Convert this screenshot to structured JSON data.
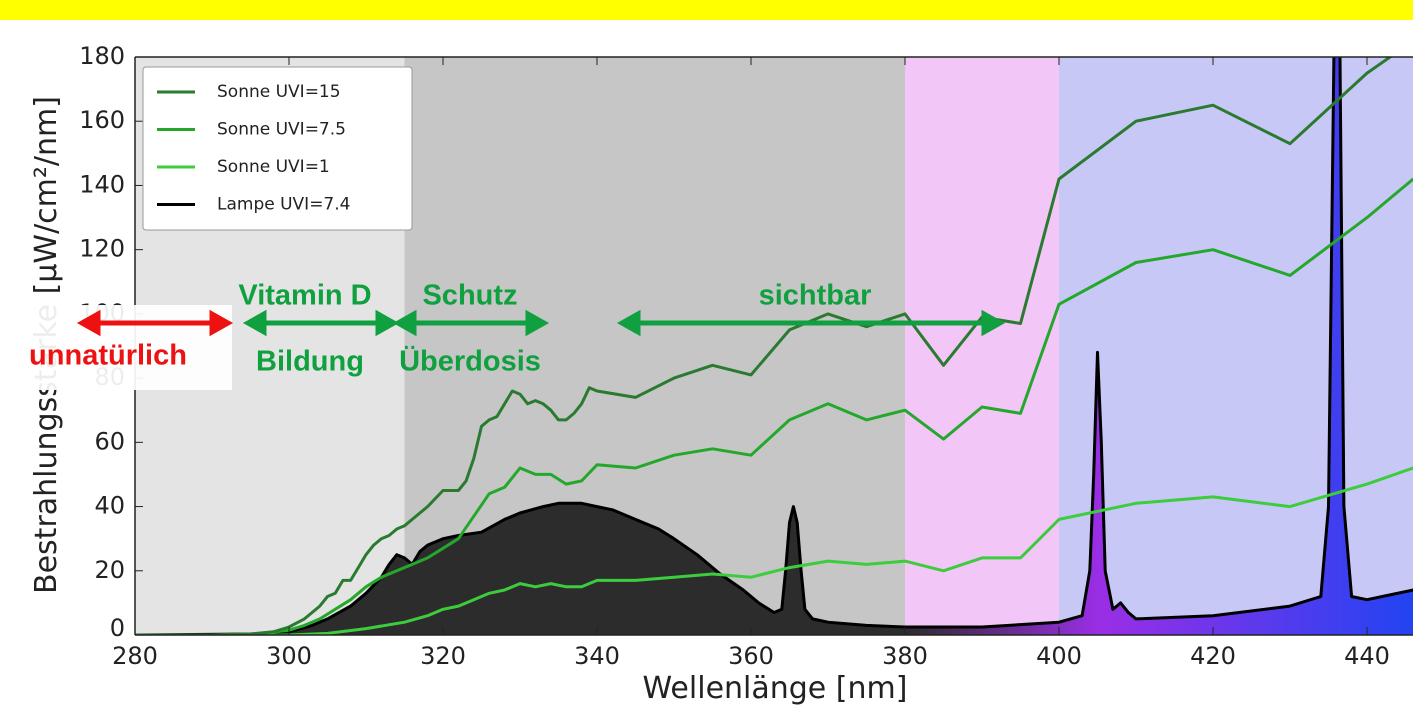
{
  "chart_data": {
    "type": "line",
    "xlabel": "Wellenlänge  [nm]",
    "ylabel": "Bestrahlungsstärke  [µW/cm²/nm]",
    "xlim": [
      280,
      446
    ],
    "ylim": [
      0,
      180
    ],
    "xticks": [
      280,
      300,
      320,
      340,
      360,
      380,
      400,
      420,
      440
    ],
    "yticks": [
      0,
      20,
      40,
      60,
      80,
      100,
      120,
      140,
      160,
      180
    ],
    "legend": "upper left",
    "regions": [
      {
        "x": [
          280,
          315
        ],
        "color": "#e4e4e4"
      },
      {
        "x": [
          315,
          380
        ],
        "color": "#c6c6c6"
      },
      {
        "x": [
          380,
          400
        ],
        "color": "#f2c6f6"
      },
      {
        "x": [
          400,
          446
        ],
        "color": "#c8c8f6"
      }
    ],
    "series": [
      {
        "name": "Sonne UVI=15",
        "color": "#2a7a30",
        "x": [
          280,
          290,
          295,
          298,
          300,
          302,
          304,
          305,
          306,
          307,
          308,
          309,
          310,
          311,
          312,
          313,
          314,
          315,
          316,
          318,
          320,
          322,
          323,
          324,
          325,
          326,
          327,
          328,
          329,
          330,
          331,
          332,
          333,
          334,
          335,
          336,
          337,
          338,
          339,
          340,
          345,
          350,
          355,
          360,
          365,
          370,
          375,
          380,
          385,
          390,
          395,
          400,
          410,
          420,
          430,
          440,
          446
        ],
        "values": [
          0,
          0,
          0.3,
          1,
          2.5,
          5,
          9,
          12,
          13,
          17,
          17,
          21,
          25,
          28,
          30,
          31,
          33,
          34,
          36,
          40,
          45,
          45,
          48,
          55,
          65,
          67,
          68,
          72,
          76,
          75,
          72,
          73,
          72,
          70,
          67,
          67,
          69,
          72,
          77,
          76,
          74,
          80,
          84,
          81,
          95,
          100,
          96,
          100,
          84,
          99,
          97,
          142,
          160,
          165,
          153,
          175,
          185
        ]
      },
      {
        "name": "Sonne UVI=7.5",
        "color": "#24a82c",
        "x": [
          280,
          290,
          295,
          300,
          302,
          304,
          306,
          308,
          310,
          312,
          314,
          316,
          318,
          320,
          322,
          324,
          326,
          328,
          330,
          332,
          334,
          336,
          338,
          340,
          345,
          350,
          355,
          360,
          365,
          370,
          375,
          380,
          385,
          390,
          395,
          400,
          410,
          420,
          430,
          440,
          446
        ],
        "values": [
          0,
          0,
          0.2,
          1.5,
          3,
          5,
          8,
          11,
          15,
          18,
          20,
          22,
          24,
          27,
          30,
          37,
          44,
          46,
          52,
          50,
          50,
          47,
          48,
          53,
          52,
          56,
          58,
          56,
          67,
          72,
          67,
          70,
          61,
          71,
          69,
          103,
          116,
          120,
          112,
          130,
          142
        ]
      },
      {
        "name": "Sonne UVI=1",
        "color": "#3ccc3c",
        "x": [
          280,
          300,
          305,
          310,
          315,
          318,
          320,
          322,
          324,
          326,
          328,
          330,
          332,
          334,
          336,
          338,
          340,
          345,
          350,
          355,
          360,
          365,
          370,
          375,
          380,
          385,
          390,
          395,
          400,
          410,
          420,
          430,
          440,
          446
        ],
        "values": [
          0,
          0,
          0.5,
          2,
          4,
          6,
          8,
          9,
          11,
          13,
          14,
          16,
          15,
          16,
          15,
          15,
          17,
          17,
          18,
          19,
          18,
          21,
          23,
          22,
          23,
          20,
          24,
          24,
          36,
          41,
          43,
          40,
          47,
          52
        ]
      },
      {
        "name": "Lampe UVI=7.4",
        "color": "#000000",
        "fill": true,
        "x": [
          280,
          295,
          300,
          303,
          305,
          308,
          310,
          312,
          313,
          314,
          315,
          316,
          317,
          318,
          320,
          322,
          325,
          328,
          330,
          333,
          335,
          338,
          340,
          342,
          345,
          348,
          350,
          353,
          356,
          359,
          361,
          363,
          364,
          364.5,
          365,
          365.5,
          366,
          366.5,
          367,
          368,
          370,
          375,
          380,
          390,
          400,
          403,
          404,
          404.5,
          405,
          405.5,
          406,
          407,
          408,
          409,
          410,
          420,
          430,
          434,
          435,
          435.7,
          436,
          436.5,
          437,
          438,
          440,
          446
        ],
        "values": [
          0,
          0.3,
          1,
          3,
          5,
          9,
          13,
          18,
          22,
          25,
          24,
          22,
          26,
          28,
          30,
          31,
          32,
          36,
          38,
          40,
          41,
          41,
          40,
          39,
          36,
          33,
          30,
          25,
          19,
          14,
          10,
          7,
          8,
          20,
          35,
          40,
          35,
          20,
          8,
          5,
          4,
          3,
          2.5,
          2.5,
          4,
          6,
          20,
          50,
          88,
          60,
          20,
          8,
          10,
          7,
          5,
          6,
          9,
          12,
          40,
          180,
          185,
          180,
          40,
          12,
          11,
          14
        ]
      }
    ],
    "annotations": [
      {
        "text": "Vitamin D",
        "color": "#10a040"
      },
      {
        "text": "Bildung",
        "color": "#10a040"
      },
      {
        "text": "Schutz",
        "color": "#10a040"
      },
      {
        "text": "Überdosis",
        "color": "#10a040"
      },
      {
        "text": "sichtbar",
        "color": "#10a040"
      },
      {
        "text": "unnatürlich",
        "color": "#ee1111"
      }
    ]
  }
}
